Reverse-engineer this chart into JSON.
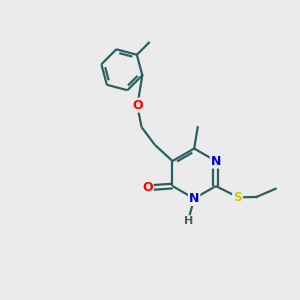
{
  "background_color": "#ebebeb",
  "bond_color": "#2a6060",
  "atom_colors": {
    "O": "#ff0000",
    "N": "#0000cc",
    "S": "#cccc00",
    "H": "#555555",
    "C": "#2a6060"
  },
  "figsize": [
    3.0,
    3.0
  ],
  "dpi": 100,
  "lw": 1.6,
  "fontsize": 9
}
